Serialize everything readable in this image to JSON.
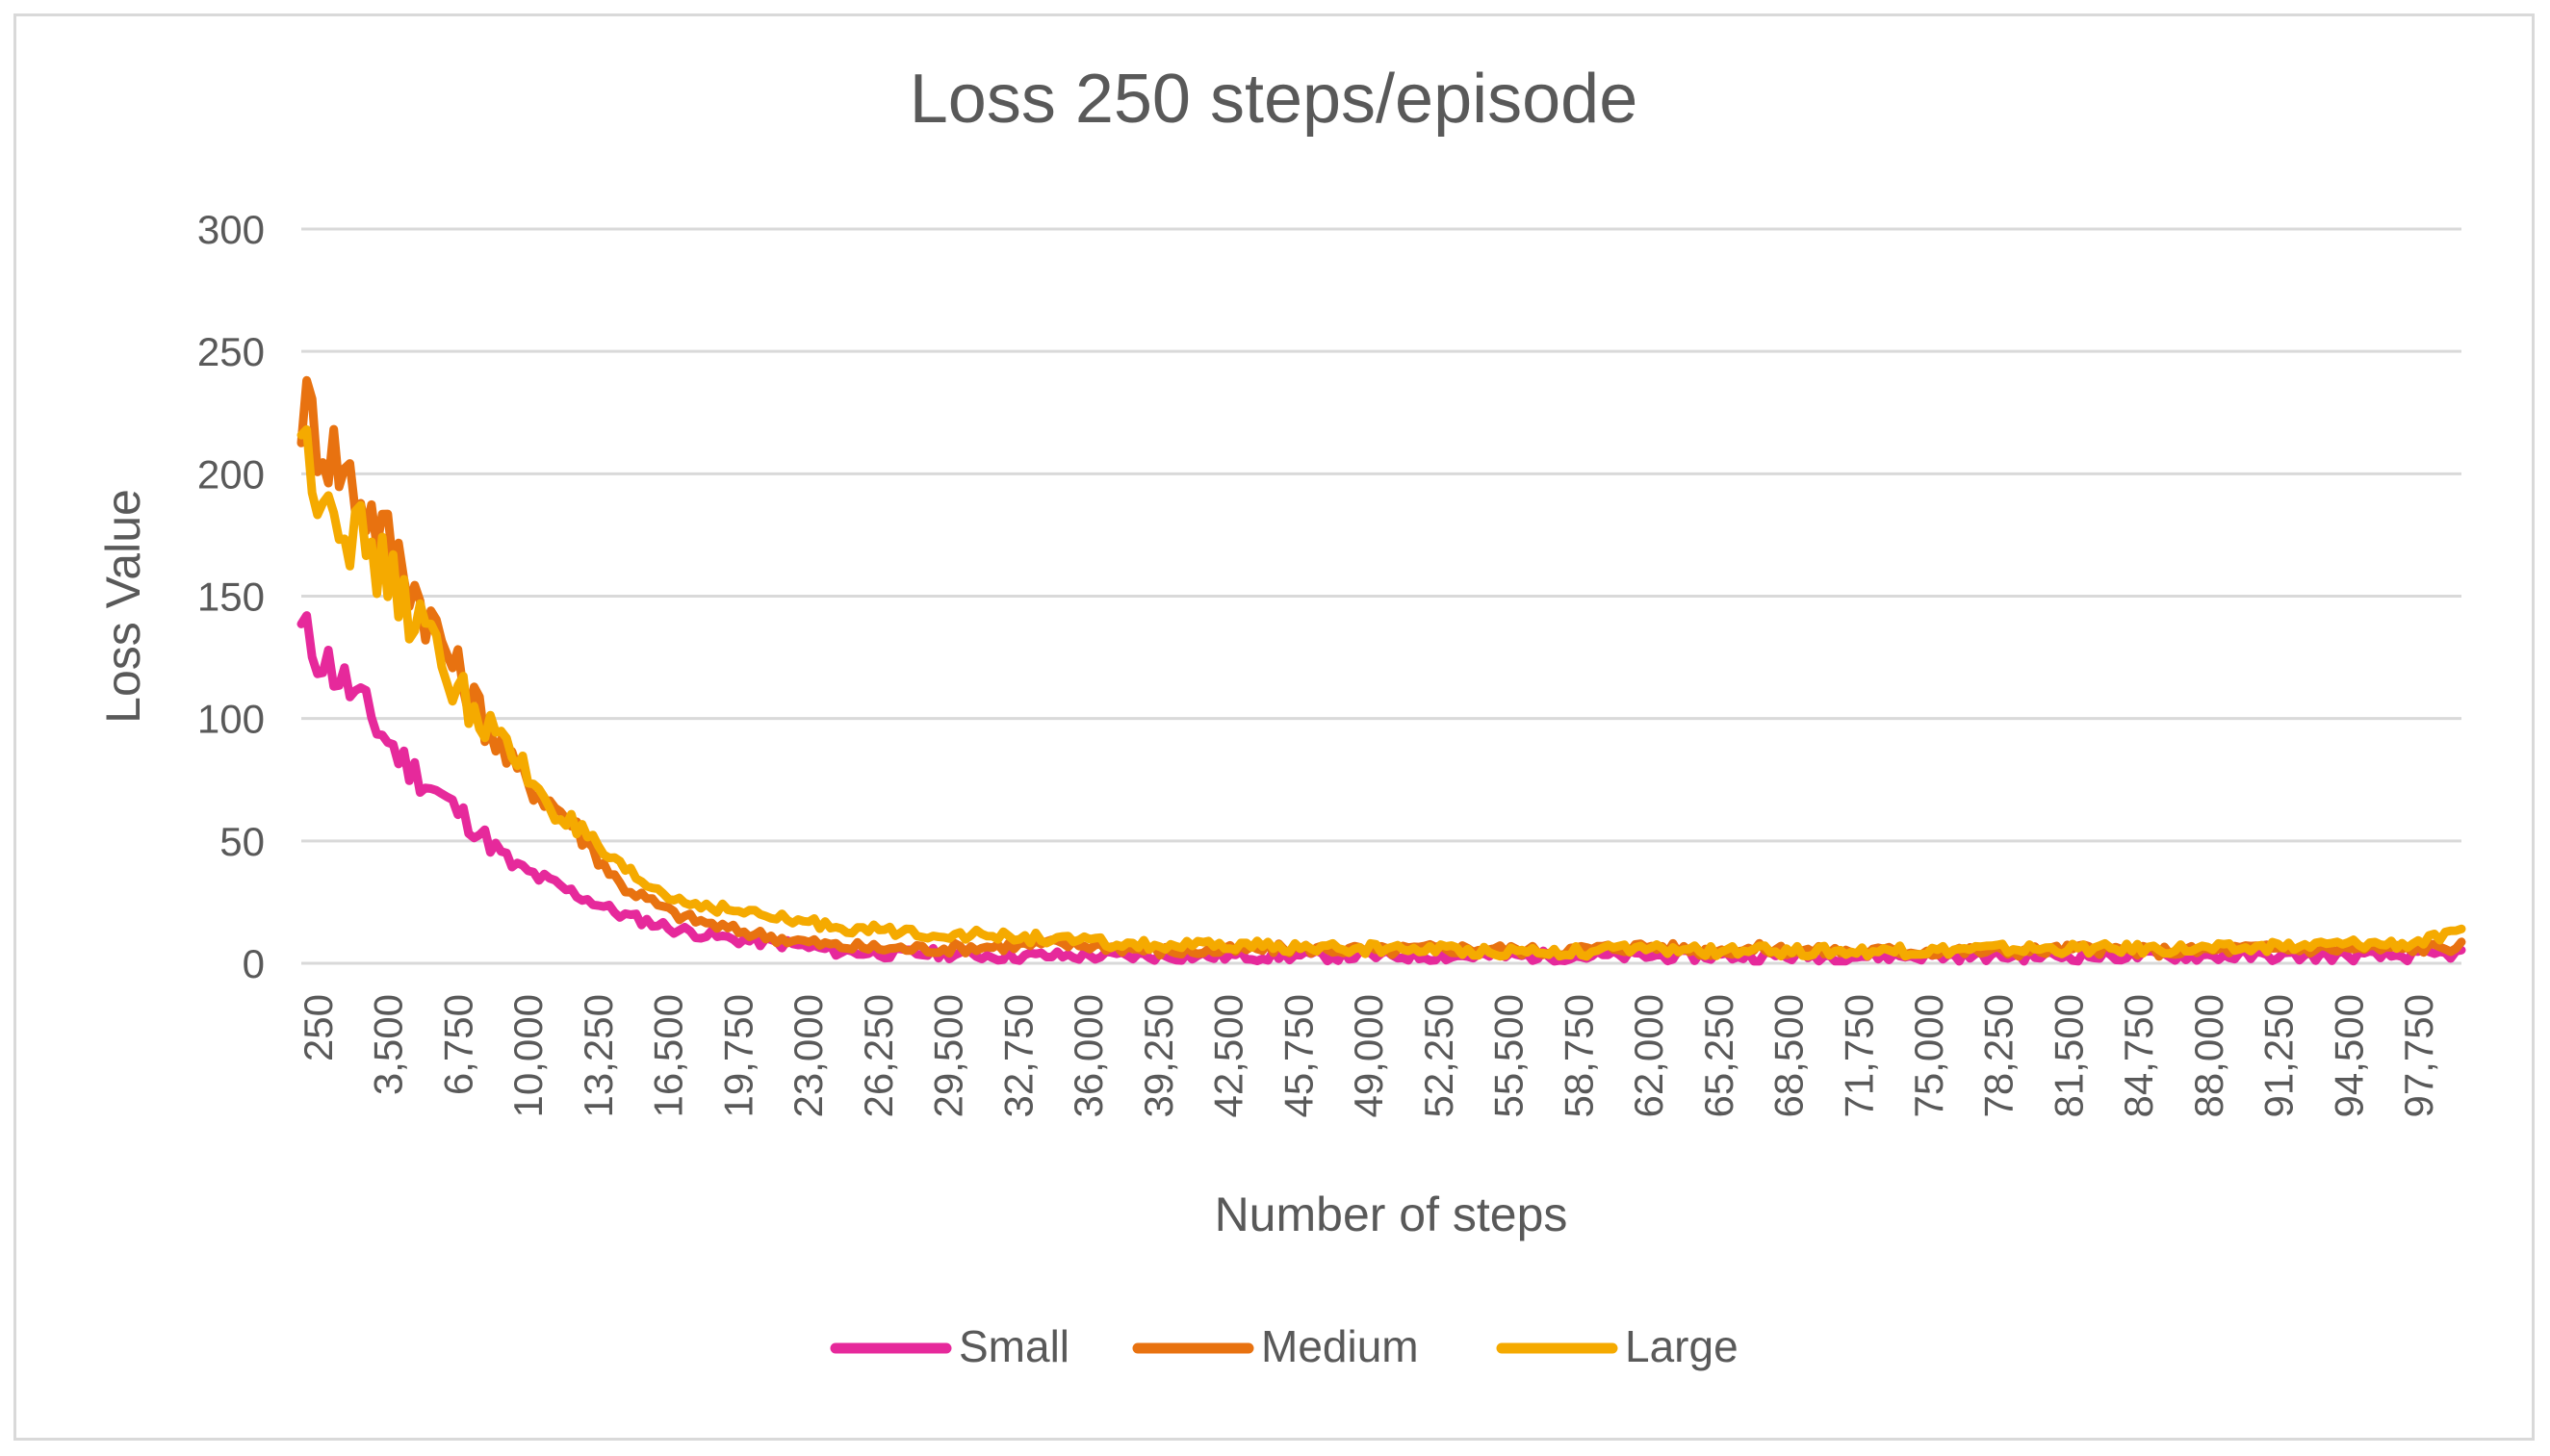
{
  "chart_data": {
    "type": "line",
    "title": "Loss 250 steps/episode",
    "xlabel": "Number of steps",
    "ylabel": "Loss Value",
    "ylim": [
      0,
      300
    ],
    "yticks": [
      0,
      50,
      100,
      150,
      200,
      250,
      300
    ],
    "xrange": [
      250,
      100000
    ],
    "xtick_labels": [
      "250",
      "3,500",
      "6,750",
      "10,000",
      "13,250",
      "16,500",
      "19,750",
      "23,000",
      "26,250",
      "29,500",
      "32,750",
      "36,000",
      "39,250",
      "42,500",
      "45,750",
      "49,000",
      "52,250",
      "55,500",
      "58,750",
      "62,000",
      "65,250",
      "68,500",
      "71,750",
      "75,000",
      "78,250",
      "81,500",
      "84,750",
      "88,000",
      "91,250",
      "94,500",
      "97,750"
    ],
    "grid": "horizontal",
    "legend_position": "bottom",
    "x": [
      250,
      2500,
      5000,
      7500,
      10000,
      12500,
      15000,
      17500,
      20000,
      22500,
      25000,
      27500,
      30000,
      32500,
      35000,
      37500,
      40000,
      42500,
      45000,
      47500,
      50000,
      52500,
      55000,
      57500,
      60000,
      62500,
      65000,
      67500,
      70000,
      72500,
      75000,
      77500,
      80000,
      82500,
      85000,
      87500,
      90000,
      92500,
      95000,
      97500,
      100000
    ],
    "series": [
      {
        "name": "Small",
        "color": "#E6299B",
        "values": [
          135,
          112,
          82,
          62,
          40,
          30,
          20,
          14,
          10,
          8,
          5,
          4,
          4,
          3,
          3,
          3,
          3,
          3,
          3,
          3,
          3,
          3,
          3,
          3,
          3,
          3,
          3,
          3,
          3,
          3,
          3,
          3,
          3,
          3,
          3,
          3,
          3,
          3,
          3,
          3,
          4
        ]
      },
      {
        "name": "Medium",
        "color": "#E87210",
        "values": [
          228,
          198,
          162,
          118,
          80,
          60,
          32,
          20,
          14,
          10,
          7,
          6,
          6,
          7,
          8,
          7,
          5,
          5,
          6,
          6,
          5,
          6,
          6,
          5,
          6,
          7,
          5,
          6,
          5,
          5,
          5,
          5,
          5,
          6,
          5,
          5,
          6,
          6,
          6,
          6,
          7
        ]
      },
      {
        "name": "Large",
        "color": "#F5AA00",
        "values": [
          212,
          178,
          148,
          112,
          84,
          58,
          38,
          26,
          22,
          18,
          15,
          13,
          12,
          11,
          10,
          8,
          7,
          7,
          7,
          6,
          6,
          6,
          5,
          5,
          5,
          6,
          5,
          5,
          5,
          5,
          5,
          6,
          6,
          6,
          6,
          6,
          6,
          7,
          8,
          8,
          12
        ]
      }
    ]
  }
}
